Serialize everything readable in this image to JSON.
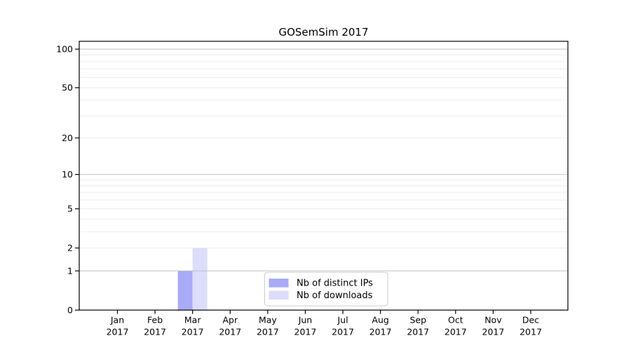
{
  "chart_data": {
    "type": "bar",
    "title": "GOSemSim 2017",
    "x_tick_months": [
      "Jan",
      "Feb",
      "Mar",
      "Apr",
      "May",
      "Jun",
      "Jul",
      "Aug",
      "Sep",
      "Oct",
      "Nov",
      "Dec"
    ],
    "x_tick_year": "2017",
    "y_scale": "log1p",
    "y_major_ticks": [
      0,
      1,
      2,
      5,
      10,
      20,
      50,
      100
    ],
    "y_decade_gridlines": [
      1,
      10,
      100
    ],
    "y_light_gridlines": [
      2,
      3,
      4,
      5,
      6,
      7,
      8,
      9,
      20,
      30,
      40,
      50,
      60,
      70,
      80,
      90
    ],
    "ylim": [
      0,
      115
    ],
    "grid": true,
    "legend_position": "lower center",
    "series": [
      {
        "name": "Nb of distinct IPs",
        "color": "#a9abf7",
        "values": [
          0,
          0,
          1,
          0,
          0,
          0,
          0,
          0,
          0,
          0,
          0,
          0
        ]
      },
      {
        "name": "Nb of downloads",
        "color": "#dbddfb",
        "values": [
          0,
          0,
          2,
          0,
          0,
          0,
          0,
          0,
          0,
          0,
          0,
          0
        ]
      }
    ],
    "colors": {
      "decade_grid": "#bababa",
      "light_grid": "#ececec",
      "axis": "#000000",
      "tick_text": "#000000",
      "legend_border": "#cccccc",
      "legend_background": "#ffffff",
      "background": "#ffffff"
    }
  }
}
